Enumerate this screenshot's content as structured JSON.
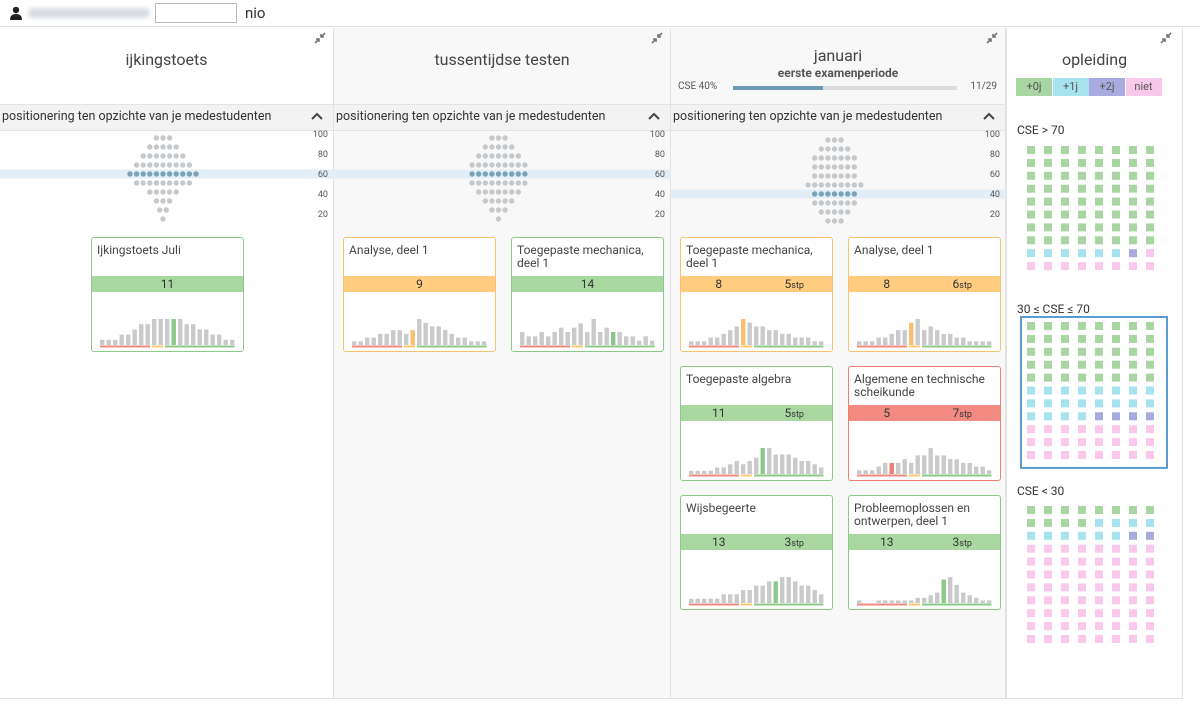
{
  "header": {
    "user": "nio"
  },
  "columns": [
    {
      "title": "ijkingstoets",
      "section": "positionering ten opzichte van je medestudenten",
      "distribution": {
        "ylim": [
          5,
          105
        ],
        "yticks": [
          100,
          80,
          60,
          40,
          20
        ],
        "levels": [
          96,
          87,
          78,
          69,
          60,
          51,
          42,
          33,
          24,
          15
        ],
        "counts": [
          3,
          5,
          7,
          9,
          11,
          9,
          5,
          3,
          2,
          1
        ],
        "you": 60
      },
      "cards": [
        {
          "title": "Ijkingstoets Juli",
          "score": 11,
          "status": "green",
          "histogram": [
            1,
            1,
            1,
            2,
            2,
            3,
            4,
            4,
            5,
            5,
            5,
            5,
            5,
            4,
            4,
            3,
            3,
            2,
            2,
            1,
            1
          ]
        }
      ]
    },
    {
      "title": "tussentijdse testen",
      "section": "positionering ten opzichte van je medestudenten",
      "distribution": {
        "ylim": [
          5,
          105
        ],
        "yticks": [
          100,
          80,
          60,
          40,
          20
        ],
        "levels": [
          96,
          87,
          78,
          69,
          60,
          51,
          42,
          33,
          24,
          15
        ],
        "counts": [
          3,
          5,
          7,
          9,
          9,
          9,
          7,
          5,
          3,
          1
        ],
        "you": 60
      },
      "cards": [
        {
          "title": "Analyse, deel 1",
          "score": 9,
          "status": "orange",
          "histogram": [
            1,
            1,
            2,
            2,
            3,
            3,
            4,
            4,
            3,
            4,
            7,
            6,
            5,
            5,
            4,
            3,
            2,
            2,
            1,
            1,
            1
          ]
        },
        {
          "title": "Toegepaste mechanica, deel 1",
          "score": 14,
          "status": "green",
          "histogram": [
            3,
            2,
            2,
            3,
            2,
            3,
            4,
            3,
            4,
            5,
            3,
            6,
            3,
            4,
            3,
            3,
            2,
            2,
            1,
            2,
            1
          ]
        }
      ]
    },
    {
      "title": "januari",
      "subtitle": "eerste examenperiode",
      "cse": 40,
      "cse_label": "CSE 40%",
      "progress_label": "11/29",
      "section": "positionering ten opzichte van je medestudenten",
      "distribution": {
        "ylim": [
          5,
          105
        ],
        "yticks": [
          100,
          80,
          60,
          40,
          20
        ],
        "levels": [
          94,
          85,
          76,
          67,
          58,
          49,
          40,
          31,
          22,
          13
        ],
        "counts": [
          3,
          5,
          7,
          7,
          7,
          9,
          7,
          7,
          5,
          3
        ],
        "you": 40
      },
      "cards": [
        {
          "title": "Toegepaste mechanica, deel 1",
          "score": 8,
          "credits": 5,
          "credits_unit": "stp",
          "status": "orange",
          "histogram": [
            1,
            1,
            1,
            2,
            2,
            3,
            4,
            5,
            7,
            6,
            5,
            5,
            4,
            4,
            3,
            3,
            2,
            2,
            2,
            1,
            1
          ]
        },
        {
          "title": "Analyse, deel 1",
          "score": 8,
          "credits": 6,
          "credits_unit": "stp",
          "status": "orange",
          "histogram": [
            1,
            1,
            1,
            2,
            2,
            3,
            4,
            4,
            6,
            7,
            4,
            5,
            4,
            3,
            3,
            2,
            2,
            1,
            1,
            1,
            1
          ]
        },
        {
          "title": "Toegepaste algebra",
          "score": 11,
          "credits": 5,
          "credits_unit": "stp",
          "status": "green",
          "histogram": [
            1,
            1,
            1,
            1,
            2,
            2,
            3,
            4,
            3,
            4,
            5,
            8,
            8,
            6,
            6,
            6,
            5,
            4,
            4,
            3,
            2
          ]
        },
        {
          "title": "Algemene en technische scheikunde",
          "score": 5,
          "credits": 7,
          "credits_unit": "stp",
          "status": "red",
          "histogram": [
            1,
            1,
            1,
            2,
            3,
            3,
            3,
            4,
            3,
            5,
            5,
            7,
            5,
            5,
            4,
            4,
            3,
            3,
            2,
            2,
            1
          ]
        },
        {
          "title": "Wijsbegeerte",
          "score": 13,
          "credits": 3,
          "credits_unit": "stp",
          "status": "green",
          "histogram": [
            1,
            1,
            1,
            1,
            1,
            2,
            2,
            2,
            3,
            3,
            4,
            4,
            5,
            5,
            6,
            6,
            5,
            4,
            4,
            3,
            2
          ]
        },
        {
          "title": "Probleemoplossen en ontwerpen, deel 1",
          "score": 13,
          "credits": 3,
          "credits_unit": "stp",
          "status": "green",
          "histogram": [
            1,
            0,
            0,
            1,
            1,
            1,
            1,
            1,
            1,
            2,
            2,
            3,
            4,
            9,
            10,
            7,
            4,
            3,
            2,
            1,
            1
          ]
        }
      ]
    }
  ],
  "program": {
    "title": "opleiding",
    "legend": [
      {
        "label": "+0j",
        "color": "#a8d5a2"
      },
      {
        "label": "+1j",
        "color": "#a6e3ef"
      },
      {
        "label": "+2j",
        "color": "#a9abe0"
      },
      {
        "label": "niet",
        "color": "#f9c8ea"
      }
    ],
    "selected": 1,
    "groups": [
      {
        "label": "CSE > 70",
        "counts": [
          64,
          6,
          1,
          9
        ]
      },
      {
        "label": "30 ≤ CSE ≤ 70",
        "counts": [
          40,
          20,
          4,
          24
        ]
      },
      {
        "label": "CSE < 30",
        "counts": [
          12,
          10,
          2,
          64
        ]
      }
    ]
  }
}
